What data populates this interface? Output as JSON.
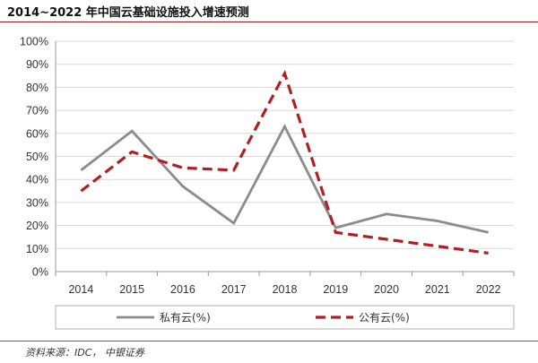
{
  "title": "2014~2022 年中国云基础设施投入增速预测",
  "source": "资料来源：IDC， 中银证券",
  "colors": {
    "private": "#8c8c8c",
    "public": "#b01f24",
    "grid": "#d9d9d9",
    "axis": "#999999"
  },
  "chart_data": {
    "type": "line",
    "title": "2014~2022 年中国云基础设施投入增速预测",
    "xlabel": "",
    "ylabel": "",
    "categories": [
      "2014",
      "2015",
      "2016",
      "2017",
      "2018",
      "2019",
      "2020",
      "2021",
      "2022"
    ],
    "ylim": [
      0,
      100
    ],
    "yticks": [
      0,
      10,
      20,
      30,
      40,
      50,
      60,
      70,
      80,
      90,
      100
    ],
    "ytick_labels": [
      "0%",
      "10%",
      "20%",
      "30%",
      "40%",
      "50%",
      "60%",
      "70%",
      "80%",
      "90%",
      "100%"
    ],
    "grid": true,
    "legend_position": "bottom",
    "series": [
      {
        "name": "私有云(%)",
        "style": "solid",
        "values": [
          44,
          61,
          37,
          21,
          63,
          19,
          25,
          22,
          17
        ]
      },
      {
        "name": "公有云(%)",
        "style": "dashed",
        "values": [
          35,
          52,
          45,
          44,
          86,
          17,
          14,
          11,
          8
        ]
      }
    ]
  }
}
